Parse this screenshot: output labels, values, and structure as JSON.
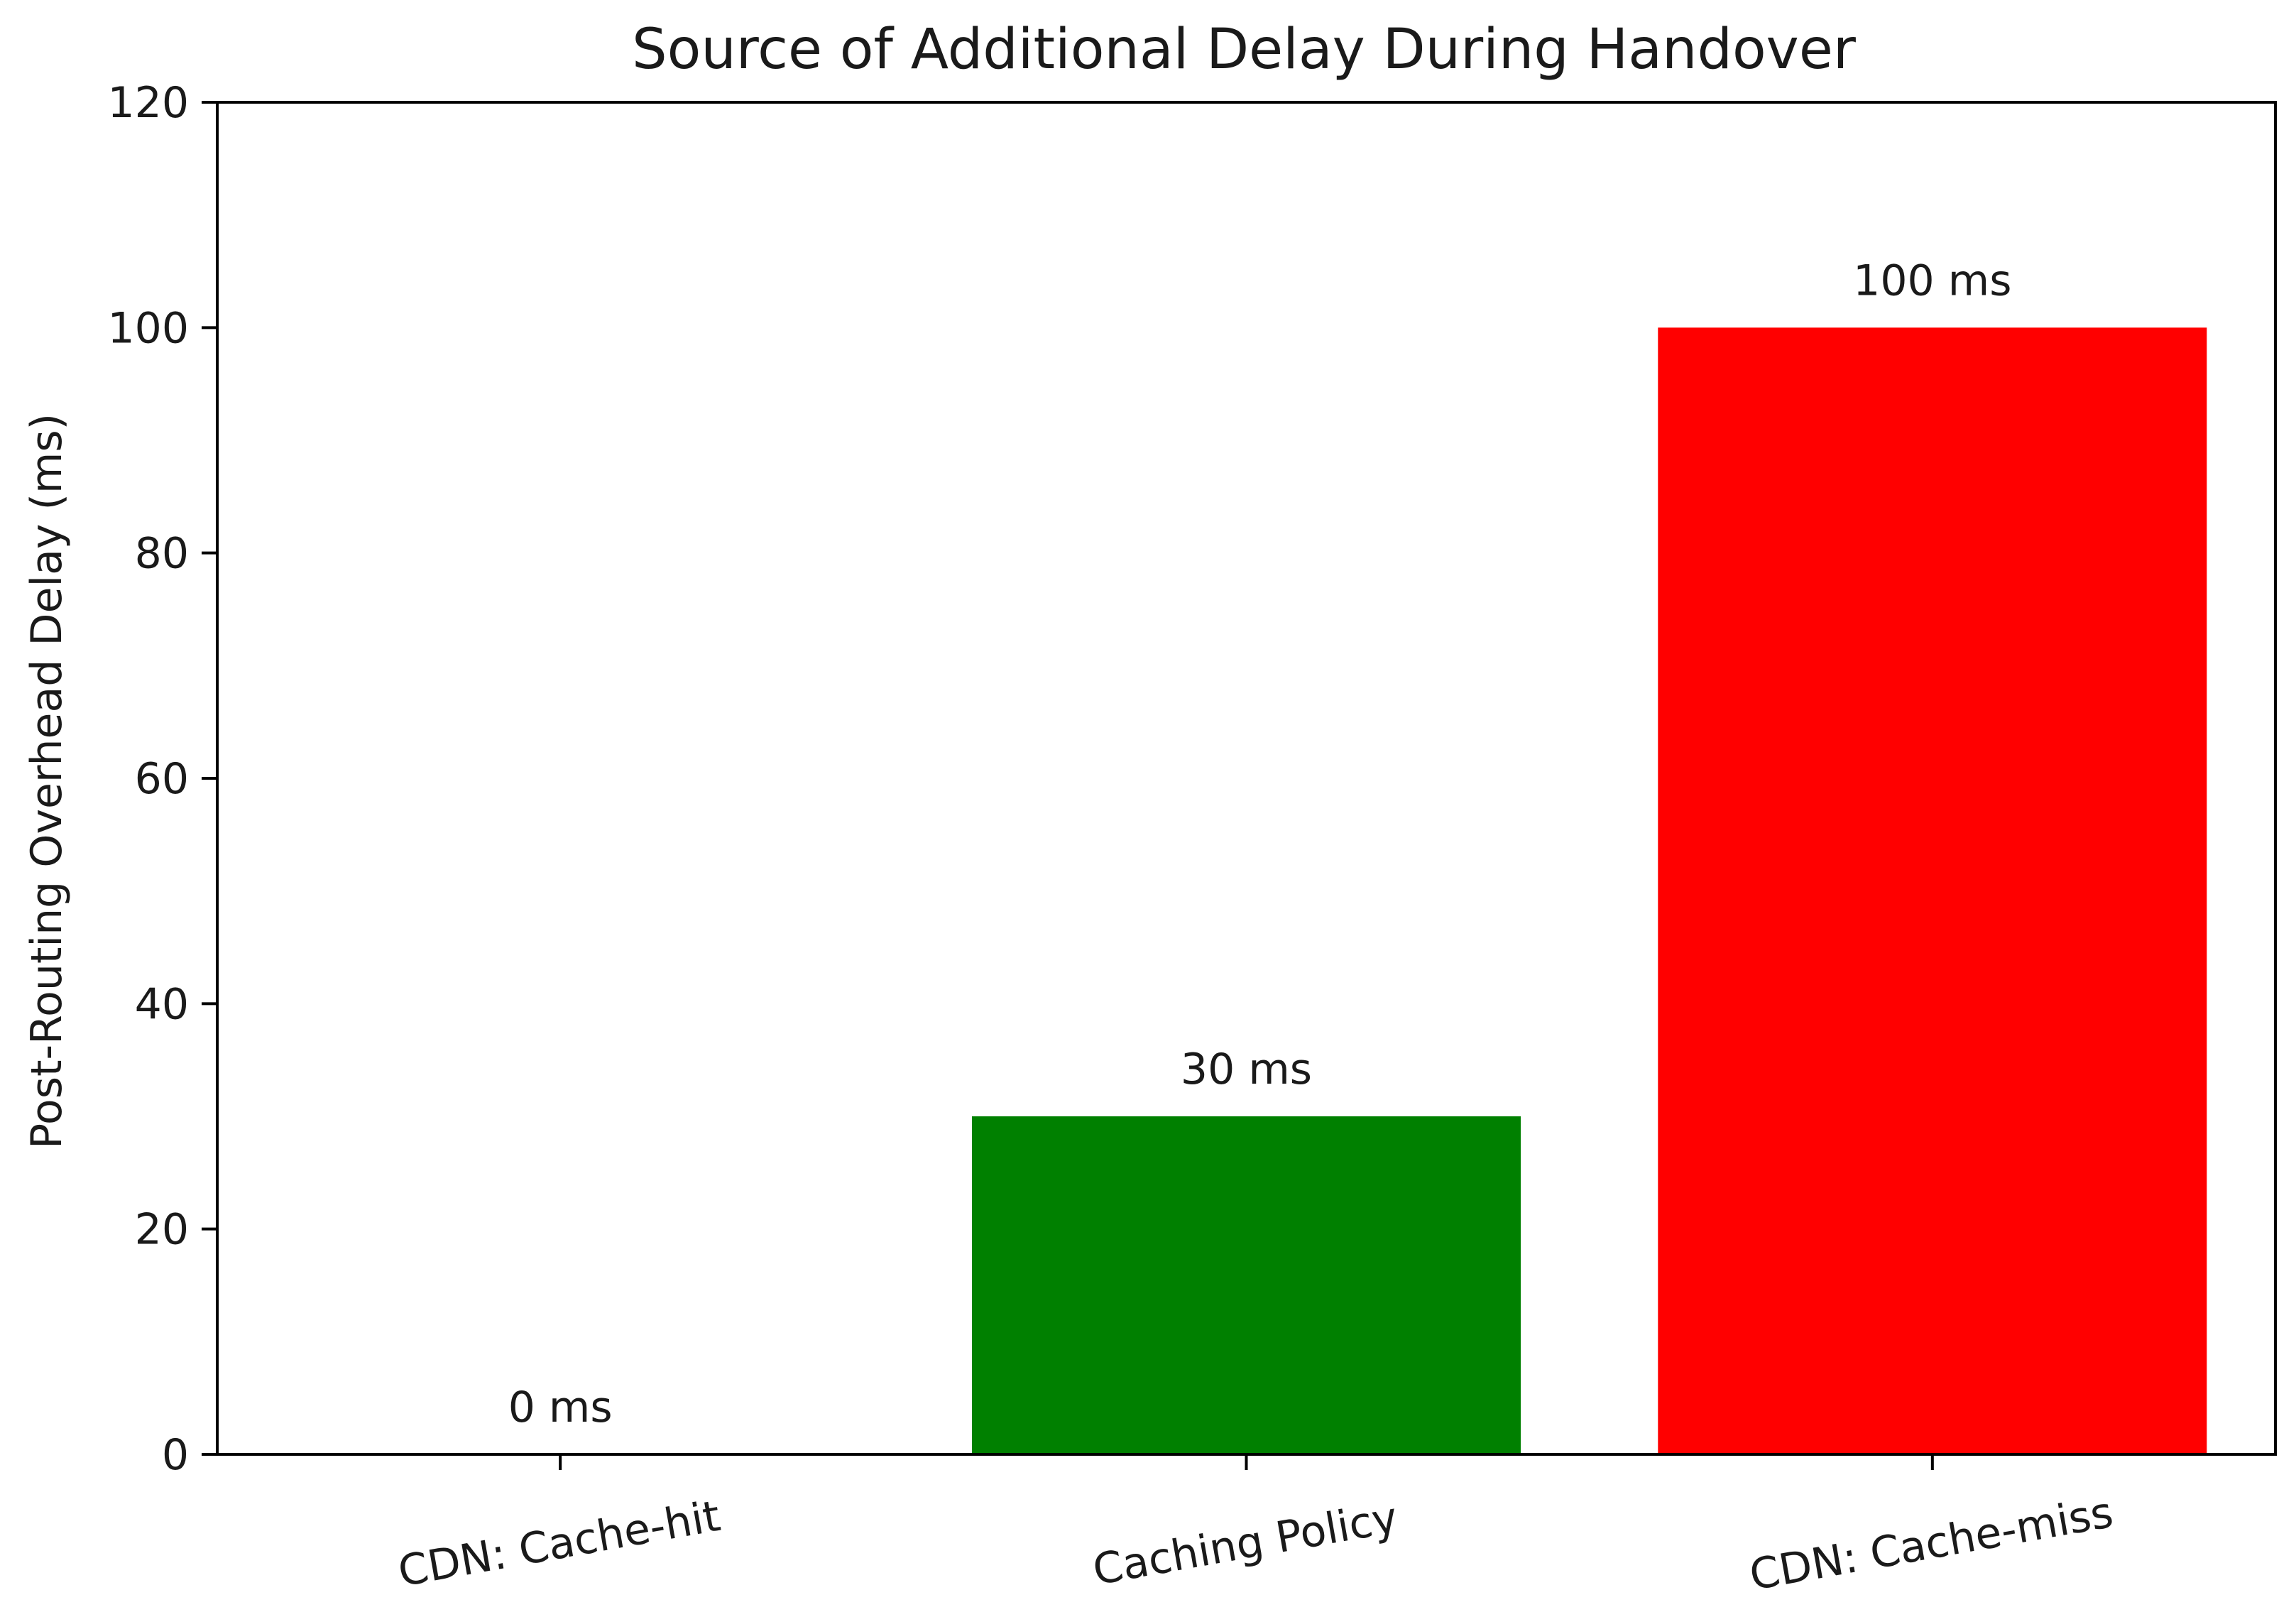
{
  "chart_data": {
    "type": "bar",
    "title": "Source of Additional Delay During Handover",
    "xlabel": "",
    "ylabel": "Post-Routing Overhead Delay (ms)",
    "categories": [
      "CDN: Cache-hit",
      "Caching Policy",
      "CDN: Cache-miss"
    ],
    "values": [
      0,
      30,
      100
    ],
    "data_labels": [
      "0 ms",
      "30 ms",
      "100 ms"
    ],
    "colors": [
      "#0000ff",
      "#008000",
      "#ff0000"
    ],
    "ylim": [
      0,
      120
    ],
    "yticks": [
      "0",
      "20",
      "40",
      "60",
      "80",
      "100",
      "120"
    ],
    "xtick_rotation": "slanted",
    "grid": false,
    "legend": "none"
  }
}
